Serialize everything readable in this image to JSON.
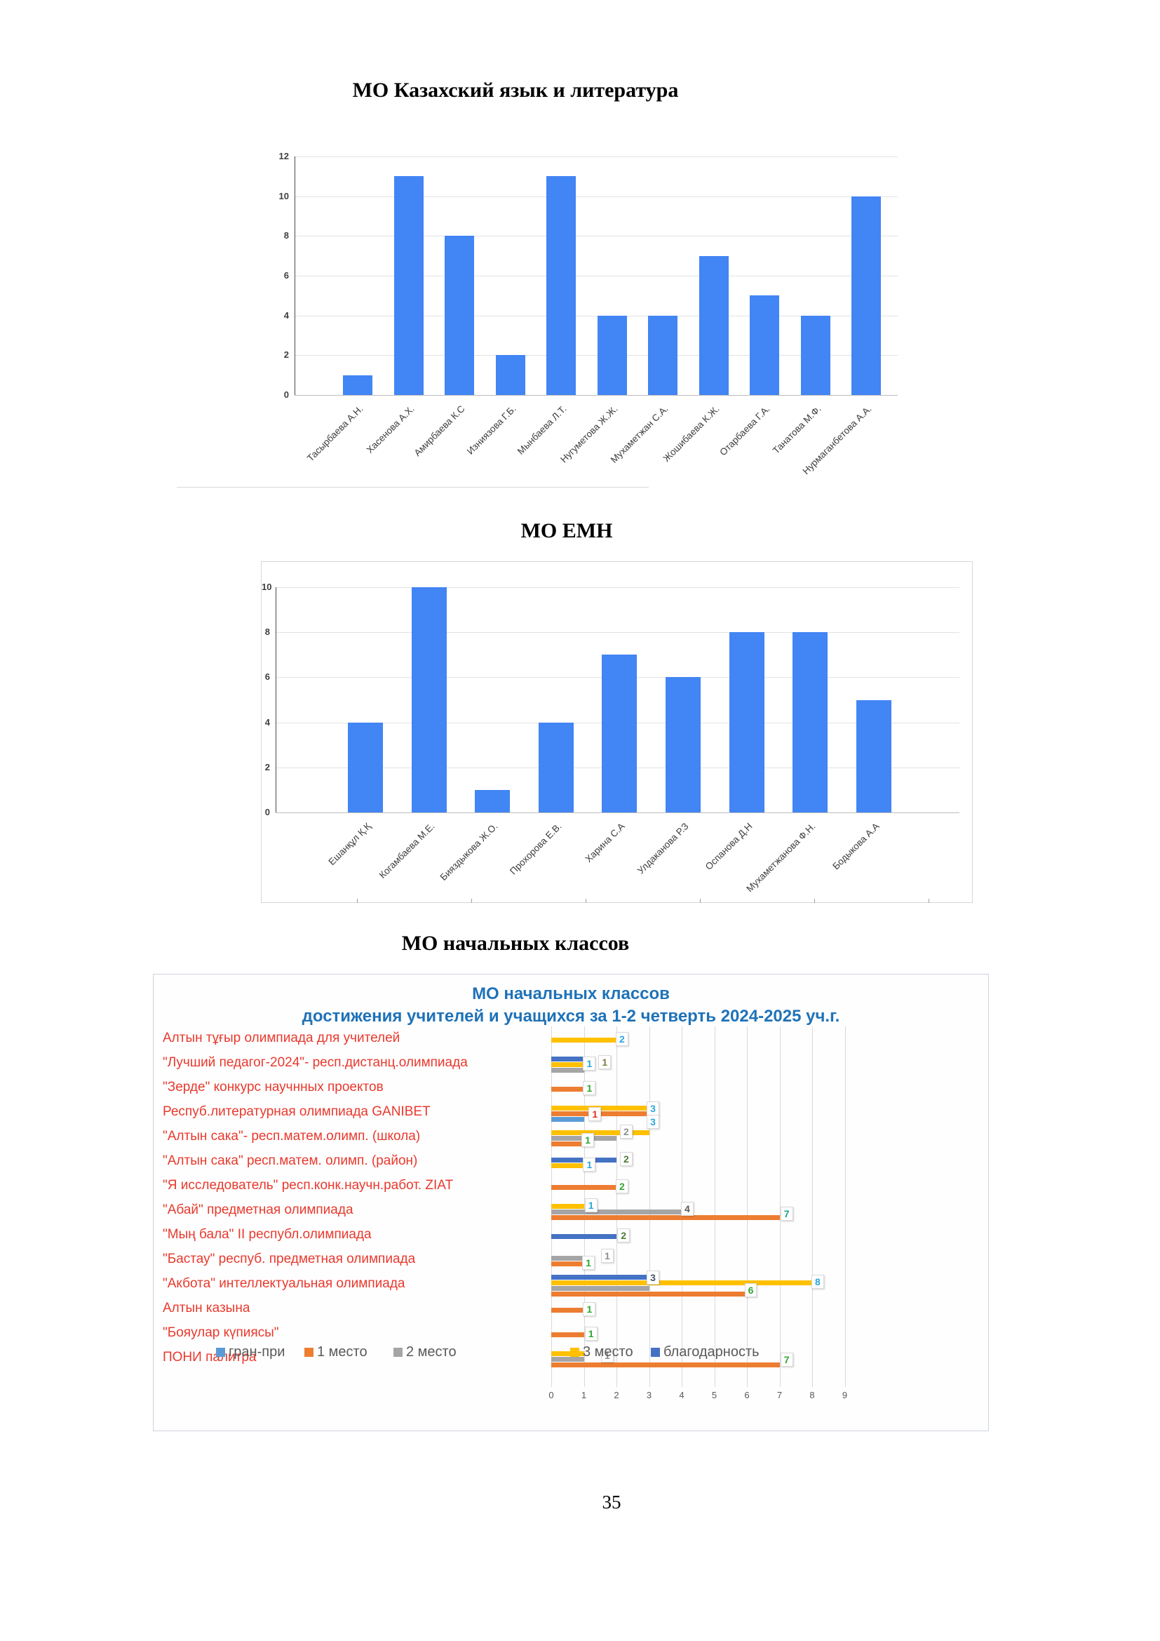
{
  "page": {
    "number": "35"
  },
  "titles": {
    "chart1": "МО Казахский язык и литература",
    "chart2": "МО ЕМН",
    "chart3": "МО начальных классов"
  },
  "chart_data": [
    {
      "type": "bar",
      "title": "МО Казахский язык и литература",
      "categories": [
        "Тасырбаева А.Н.",
        "Хасенова А.Х.",
        "Амирбаева К.С",
        "Изниязова Г.Б.",
        "Мынбаева Л.Т.",
        "Нугуметова Ж.Ж.",
        "Мухаметжан С.А.",
        "Жошибаева К.Ж.",
        "Отарбаева Г.А.",
        "Танатова М.Ф.",
        "Нурмаганбетова А.А."
      ],
      "values": [
        1,
        11,
        8,
        2,
        11,
        4,
        4,
        7,
        5,
        4,
        10
      ],
      "xlabel": "",
      "ylabel": "",
      "ylim": [
        0,
        12
      ],
      "yticks": [
        0,
        2,
        4,
        6,
        8,
        10,
        12
      ],
      "bar_color": "#4285F4",
      "grid": true,
      "legend_position": "none"
    },
    {
      "type": "bar",
      "title": "МО ЕМН",
      "categories": [
        "Ешанқұл Қ.Қ",
        "Когамбаева М.Е.",
        "Бияздыкова Ж.О.",
        "Прохорова Е.В.",
        "Харина С.А",
        "Улдаканова Р.З",
        "Оспанова Д.Н",
        "Мухаметжанова Ф.Н.",
        "Бодыкова А.А"
      ],
      "values": [
        4,
        10,
        1,
        4,
        7,
        6,
        8,
        8,
        5
      ],
      "xlabel": "",
      "ylabel": "",
      "ylim": [
        0,
        10
      ],
      "yticks": [
        0,
        2,
        4,
        6,
        8,
        10
      ],
      "bar_color": "#4285F4",
      "grid": true,
      "legend_position": "none"
    },
    {
      "type": "bar-horizontal-grouped",
      "title_line1": "МО начальных классов",
      "title_line2": "достижения учителей и учащихся за 1-2 четверть 2024-2025 уч.г.",
      "title_color": "#1F72B8",
      "category_color": "#E8392D",
      "xlim": [
        0,
        9.5
      ],
      "xticks": [
        0,
        1,
        2,
        3,
        4,
        5,
        6,
        7,
        8,
        9
      ],
      "grid": true,
      "legend_position": "bottom-overlap",
      "series_order_top_to_bottom": [
        "благодарность",
        "3 место",
        "2 место",
        "1 место",
        "гран-при"
      ],
      "legend": [
        {
          "name": "гран-при",
          "color": "#5B9BD5"
        },
        {
          "name": "1 место",
          "color": "#ED7D31"
        },
        {
          "name": "2 место",
          "color": "#A5A5A5"
        },
        {
          "name": "3 место",
          "color": "#FFC000"
        },
        {
          "name": "благодарность",
          "color": "#4472C4"
        }
      ],
      "rows": [
        {
          "category": "Алтын тұғыр олимпиада для учителей",
          "bars": [
            {
              "series": "3 место",
              "value": 2
            }
          ],
          "labels": [
            {
              "text": "2",
              "x": 2.15,
              "dy": 0,
              "color": "#2AA7DC"
            }
          ]
        },
        {
          "category": "\"Лучший педагог-2024\"- респ.дистанц.олимпиада",
          "bars": [
            {
              "series": "благодарность",
              "value": 1
            },
            {
              "series": "3 место",
              "value": 1
            },
            {
              "series": "2 место",
              "value": 1
            }
          ],
          "labels": [
            {
              "text": "1",
              "x": 1.15,
              "dy": 0,
              "color": "#2AA7DC"
            },
            {
              "text": "1",
              "x": 1.62,
              "dy": -2,
              "color": "#7F7B40"
            }
          ]
        },
        {
          "category": "\"Зерде\" конкурс научнных проектов",
          "bars": [
            {
              "series": "1 место",
              "value": 1
            }
          ],
          "labels": [
            {
              "text": "1",
              "x": 1.15,
              "dy": 0,
              "color": "#33A532"
            }
          ]
        },
        {
          "category": "Респуб.литературная олимпиада GANIBET",
          "bars": [
            {
              "series": "3 место",
              "value": 3
            },
            {
              "series": "1 место",
              "value": 3
            },
            {
              "series": "гран-при",
              "value": 1
            }
          ],
          "labels": [
            {
              "text": "1",
              "x": 1.32,
              "dy": 2,
              "color": "#DE3226"
            },
            {
              "text": "3",
              "x": 3.1,
              "dy": -6,
              "color": "#2AA7DC"
            },
            {
              "text": "3",
              "x": 3.1,
              "dy": 13,
              "color": "#2AA7DC"
            }
          ]
        },
        {
          "category": "\"Алтын сака\"- респ.матем.олимп. (школа)",
          "bars": [
            {
              "series": "3 место",
              "value": 3
            },
            {
              "series": "2 место",
              "value": 2
            },
            {
              "series": "1 место",
              "value": 1
            }
          ],
          "labels": [
            {
              "text": "1",
              "x": 1.1,
              "dy": 4,
              "color": "#33A532"
            },
            {
              "text": "2",
              "x": 2.28,
              "dy": -8,
              "color": "#8F8F8F"
            }
          ]
        },
        {
          "category": "\"Алтын сака\"  респ.матем. олимп. (район)",
          "bars": [
            {
              "series": "благодарность",
              "value": 2
            },
            {
              "series": "3 место",
              "value": 1
            }
          ],
          "labels": [
            {
              "text": "1",
              "x": 1.15,
              "dy": 4,
              "color": "#2AA7DC"
            },
            {
              "text": "2",
              "x": 2.28,
              "dy": -4,
              "color": "#4E7B3A"
            }
          ]
        },
        {
          "category": "\"Я исследователь\" респ.конк.научн.работ. ZIAT",
          "bars": [
            {
              "series": "1 место",
              "value": 2
            }
          ],
          "labels": [
            {
              "text": "2",
              "x": 2.15,
              "dy": 0,
              "color": "#33A532"
            }
          ]
        },
        {
          "category": "\"Абай\"  предметная олимпиада",
          "bars": [
            {
              "series": "3 место",
              "value": 1
            },
            {
              "series": "2 место",
              "value": 4
            },
            {
              "series": "1 место",
              "value": 7
            }
          ],
          "labels": [
            {
              "text": "1",
              "x": 1.2,
              "dy": -8,
              "color": "#2AA7DC"
            },
            {
              "text": "4",
              "x": 4.15,
              "dy": -3,
              "color": "#595959"
            },
            {
              "text": "7",
              "x": 7.2,
              "dy": 4,
              "color": "#18A689"
            }
          ]
        },
        {
          "category": "\"Мың бала\"  II  республ.олимпиада",
          "bars": [
            {
              "series": "благодарность",
              "value": 2
            }
          ],
          "labels": [
            {
              "text": "2",
              "x": 2.2,
              "dy": 0,
              "color": "#4E7B3A"
            }
          ]
        },
        {
          "category": "\"Бастау\" респуб. предметная олимпиада",
          "bars": [
            {
              "series": "2 место",
              "value": 1
            },
            {
              "series": "1 место",
              "value": 1
            }
          ],
          "labels": [
            {
              "text": "1",
              "x": 1.12,
              "dy": 4,
              "color": "#33A532"
            },
            {
              "text": "1",
              "x": 1.7,
              "dy": -6,
              "color": "#8F8F8F"
            }
          ]
        },
        {
          "category": "\"Акбота\" интеллектуальная олимпиада",
          "bars": [
            {
              "series": "благодарность",
              "value": 3
            },
            {
              "series": "3 место",
              "value": 8
            },
            {
              "series": "2 место",
              "value": 3
            },
            {
              "series": "1 место",
              "value": 6
            }
          ],
          "labels": [
            {
              "text": "3",
              "x": 3.1,
              "dy": -10,
              "color": "#44546A"
            },
            {
              "text": "8",
              "x": 8.15,
              "dy": -4,
              "color": "#2AA7DC"
            },
            {
              "text": "6",
              "x": 6.1,
              "dy": 8,
              "color": "#33A532"
            }
          ]
        },
        {
          "category": "Алтын казына",
          "bars": [
            {
              "series": "1 место",
              "value": 1
            }
          ],
          "labels": [
            {
              "text": "1",
              "x": 1.15,
              "dy": 0,
              "color": "#33A532"
            }
          ]
        },
        {
          "category": "\"Бояулар күпиясы\"",
          "bars": [
            {
              "series": "1 место",
              "value": 1
            }
          ],
          "labels": [
            {
              "text": "1",
              "x": 1.2,
              "dy": 0,
              "color": "#33A532"
            }
          ]
        },
        {
          "category": "ПОНИ палитра",
          "bars": [
            {
              "series": "3 место",
              "value": 1
            },
            {
              "series": "2 место",
              "value": 1
            },
            {
              "series": "1 место",
              "value": 7
            }
          ],
          "labels": [
            {
              "text": "1",
              "x": 1.7,
              "dy": -4,
              "color": "#8F8F8F"
            },
            {
              "text": "7",
              "x": 7.2,
              "dy": 2,
              "color": "#33A532"
            }
          ]
        }
      ]
    }
  ]
}
